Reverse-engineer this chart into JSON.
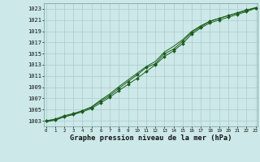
{
  "title": "Graphe pression niveau de la mer (hPa)",
  "bg_color": "#cce8e8",
  "grid_color": "#aacccc",
  "line_color": "#1a5c1a",
  "xmin": 0,
  "xmax": 23,
  "ymin": 1002,
  "ymax": 1024,
  "yticks": [
    1003,
    1005,
    1007,
    1009,
    1011,
    1013,
    1015,
    1017,
    1019,
    1021,
    1023
  ],
  "xticks": [
    0,
    1,
    2,
    3,
    4,
    5,
    6,
    7,
    8,
    9,
    10,
    11,
    12,
    13,
    14,
    15,
    16,
    17,
    18,
    19,
    20,
    21,
    22,
    23
  ],
  "series1_x": [
    0,
    1,
    2,
    3,
    4,
    5,
    6,
    7,
    8,
    9,
    10,
    11,
    12,
    13,
    14,
    15,
    16,
    17,
    18,
    19,
    20,
    21,
    22,
    23
  ],
  "series1_y": [
    1003.0,
    1003.3,
    1003.9,
    1004.3,
    1004.8,
    1005.4,
    1006.5,
    1007.5,
    1008.8,
    1010.0,
    1011.2,
    1012.5,
    1013.2,
    1015.0,
    1015.8,
    1017.2,
    1018.8,
    1019.8,
    1020.8,
    1021.3,
    1021.8,
    1022.3,
    1022.8,
    1023.2
  ],
  "series2_x": [
    0,
    1,
    2,
    3,
    4,
    5,
    6,
    7,
    8,
    9,
    10,
    11,
    12,
    13,
    14,
    15,
    16,
    17,
    18,
    19,
    20,
    21,
    22,
    23
  ],
  "series2_y": [
    1003.0,
    1003.2,
    1003.7,
    1004.1,
    1004.6,
    1005.2,
    1006.2,
    1007.2,
    1008.4,
    1009.5,
    1010.6,
    1011.8,
    1013.0,
    1014.5,
    1015.5,
    1016.8,
    1018.5,
    1019.6,
    1020.5,
    1021.0,
    1021.5,
    1022.0,
    1022.5,
    1023.1
  ],
  "series3_x": [
    0,
    1,
    2,
    3,
    4,
    5,
    6,
    7,
    8,
    9,
    10,
    11,
    12,
    13,
    14,
    15,
    16,
    17,
    18,
    19,
    20,
    21,
    22,
    23
  ],
  "series3_y": [
    1002.8,
    1003.1,
    1003.7,
    1004.2,
    1004.8,
    1005.5,
    1006.7,
    1007.8,
    1009.1,
    1010.3,
    1011.5,
    1012.7,
    1013.6,
    1015.3,
    1016.3,
    1017.5,
    1019.0,
    1020.0,
    1020.8,
    1021.3,
    1021.8,
    1022.2,
    1022.7,
    1023.2
  ]
}
